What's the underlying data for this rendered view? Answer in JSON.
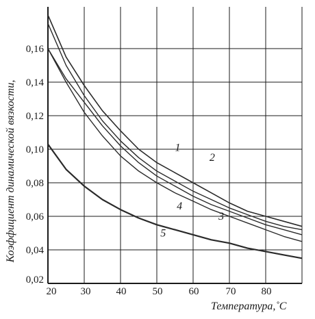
{
  "chart_data": {
    "type": "line",
    "xlabel": "Температура,˚С",
    "ylabel": "Коэффициент динамической вязкости,",
    "xlim": [
      20,
      90
    ],
    "ylim": [
      0.02,
      0.18
    ],
    "x_ticks": [
      "20",
      "30",
      "40",
      "50",
      "60",
      "70",
      "80"
    ],
    "y_ticks": [
      "0,02",
      "0,04",
      "0,06",
      "0,08",
      "0,10",
      "0,12",
      "0,14",
      "0,16"
    ],
    "grid": true,
    "series": [
      {
        "name": "1",
        "x": [
          20,
          25,
          30,
          35,
          40,
          45,
          50,
          55,
          60,
          65,
          70,
          75,
          80,
          85,
          90
        ],
        "y": [
          0.18,
          0.155,
          0.138,
          0.123,
          0.111,
          0.1,
          0.092,
          0.086,
          0.08,
          0.074,
          0.068,
          0.063,
          0.06,
          0.057,
          0.054
        ]
      },
      {
        "name": "2",
        "x": [
          20,
          25,
          30,
          35,
          40,
          45,
          50,
          55,
          60,
          65,
          70,
          75,
          80,
          85,
          90
        ],
        "y": [
          0.175,
          0.15,
          0.132,
          0.117,
          0.105,
          0.095,
          0.087,
          0.081,
          0.075,
          0.07,
          0.065,
          0.061,
          0.057,
          0.054,
          0.052
        ]
      },
      {
        "name": "3",
        "x": [
          20,
          25,
          30,
          35,
          40,
          45,
          50,
          55,
          60,
          65,
          70,
          75,
          80,
          85,
          90
        ],
        "y": [
          0.16,
          0.142,
          0.128,
          0.114,
          0.102,
          0.092,
          0.084,
          0.078,
          0.072,
          0.067,
          0.063,
          0.059,
          0.055,
          0.052,
          0.049
        ]
      },
      {
        "name": "4",
        "x": [
          20,
          25,
          30,
          35,
          40,
          45,
          50,
          55,
          60,
          65,
          70,
          75,
          80,
          85,
          90
        ],
        "y": [
          0.16,
          0.14,
          0.122,
          0.108,
          0.096,
          0.087,
          0.08,
          0.074,
          0.069,
          0.064,
          0.06,
          0.056,
          0.052,
          0.048,
          0.045
        ]
      },
      {
        "name": "5",
        "x": [
          20,
          25,
          30,
          35,
          40,
          45,
          50,
          55,
          60,
          65,
          70,
          75,
          80,
          85,
          90
        ],
        "y": [
          0.103,
          0.088,
          0.078,
          0.07,
          0.064,
          0.059,
          0.055,
          0.052,
          0.049,
          0.046,
          0.044,
          0.041,
          0.039,
          0.037,
          0.035
        ]
      }
    ],
    "curve_labels": [
      {
        "text": "1",
        "x": 55,
        "y": 0.099
      },
      {
        "text": "2",
        "x": 64.5,
        "y": 0.093
      },
      {
        "text": "3",
        "x": 67,
        "y": 0.058
      },
      {
        "text": "4",
        "x": 55.5,
        "y": 0.064
      },
      {
        "text": "5",
        "x": 51,
        "y": 0.048
      }
    ]
  }
}
